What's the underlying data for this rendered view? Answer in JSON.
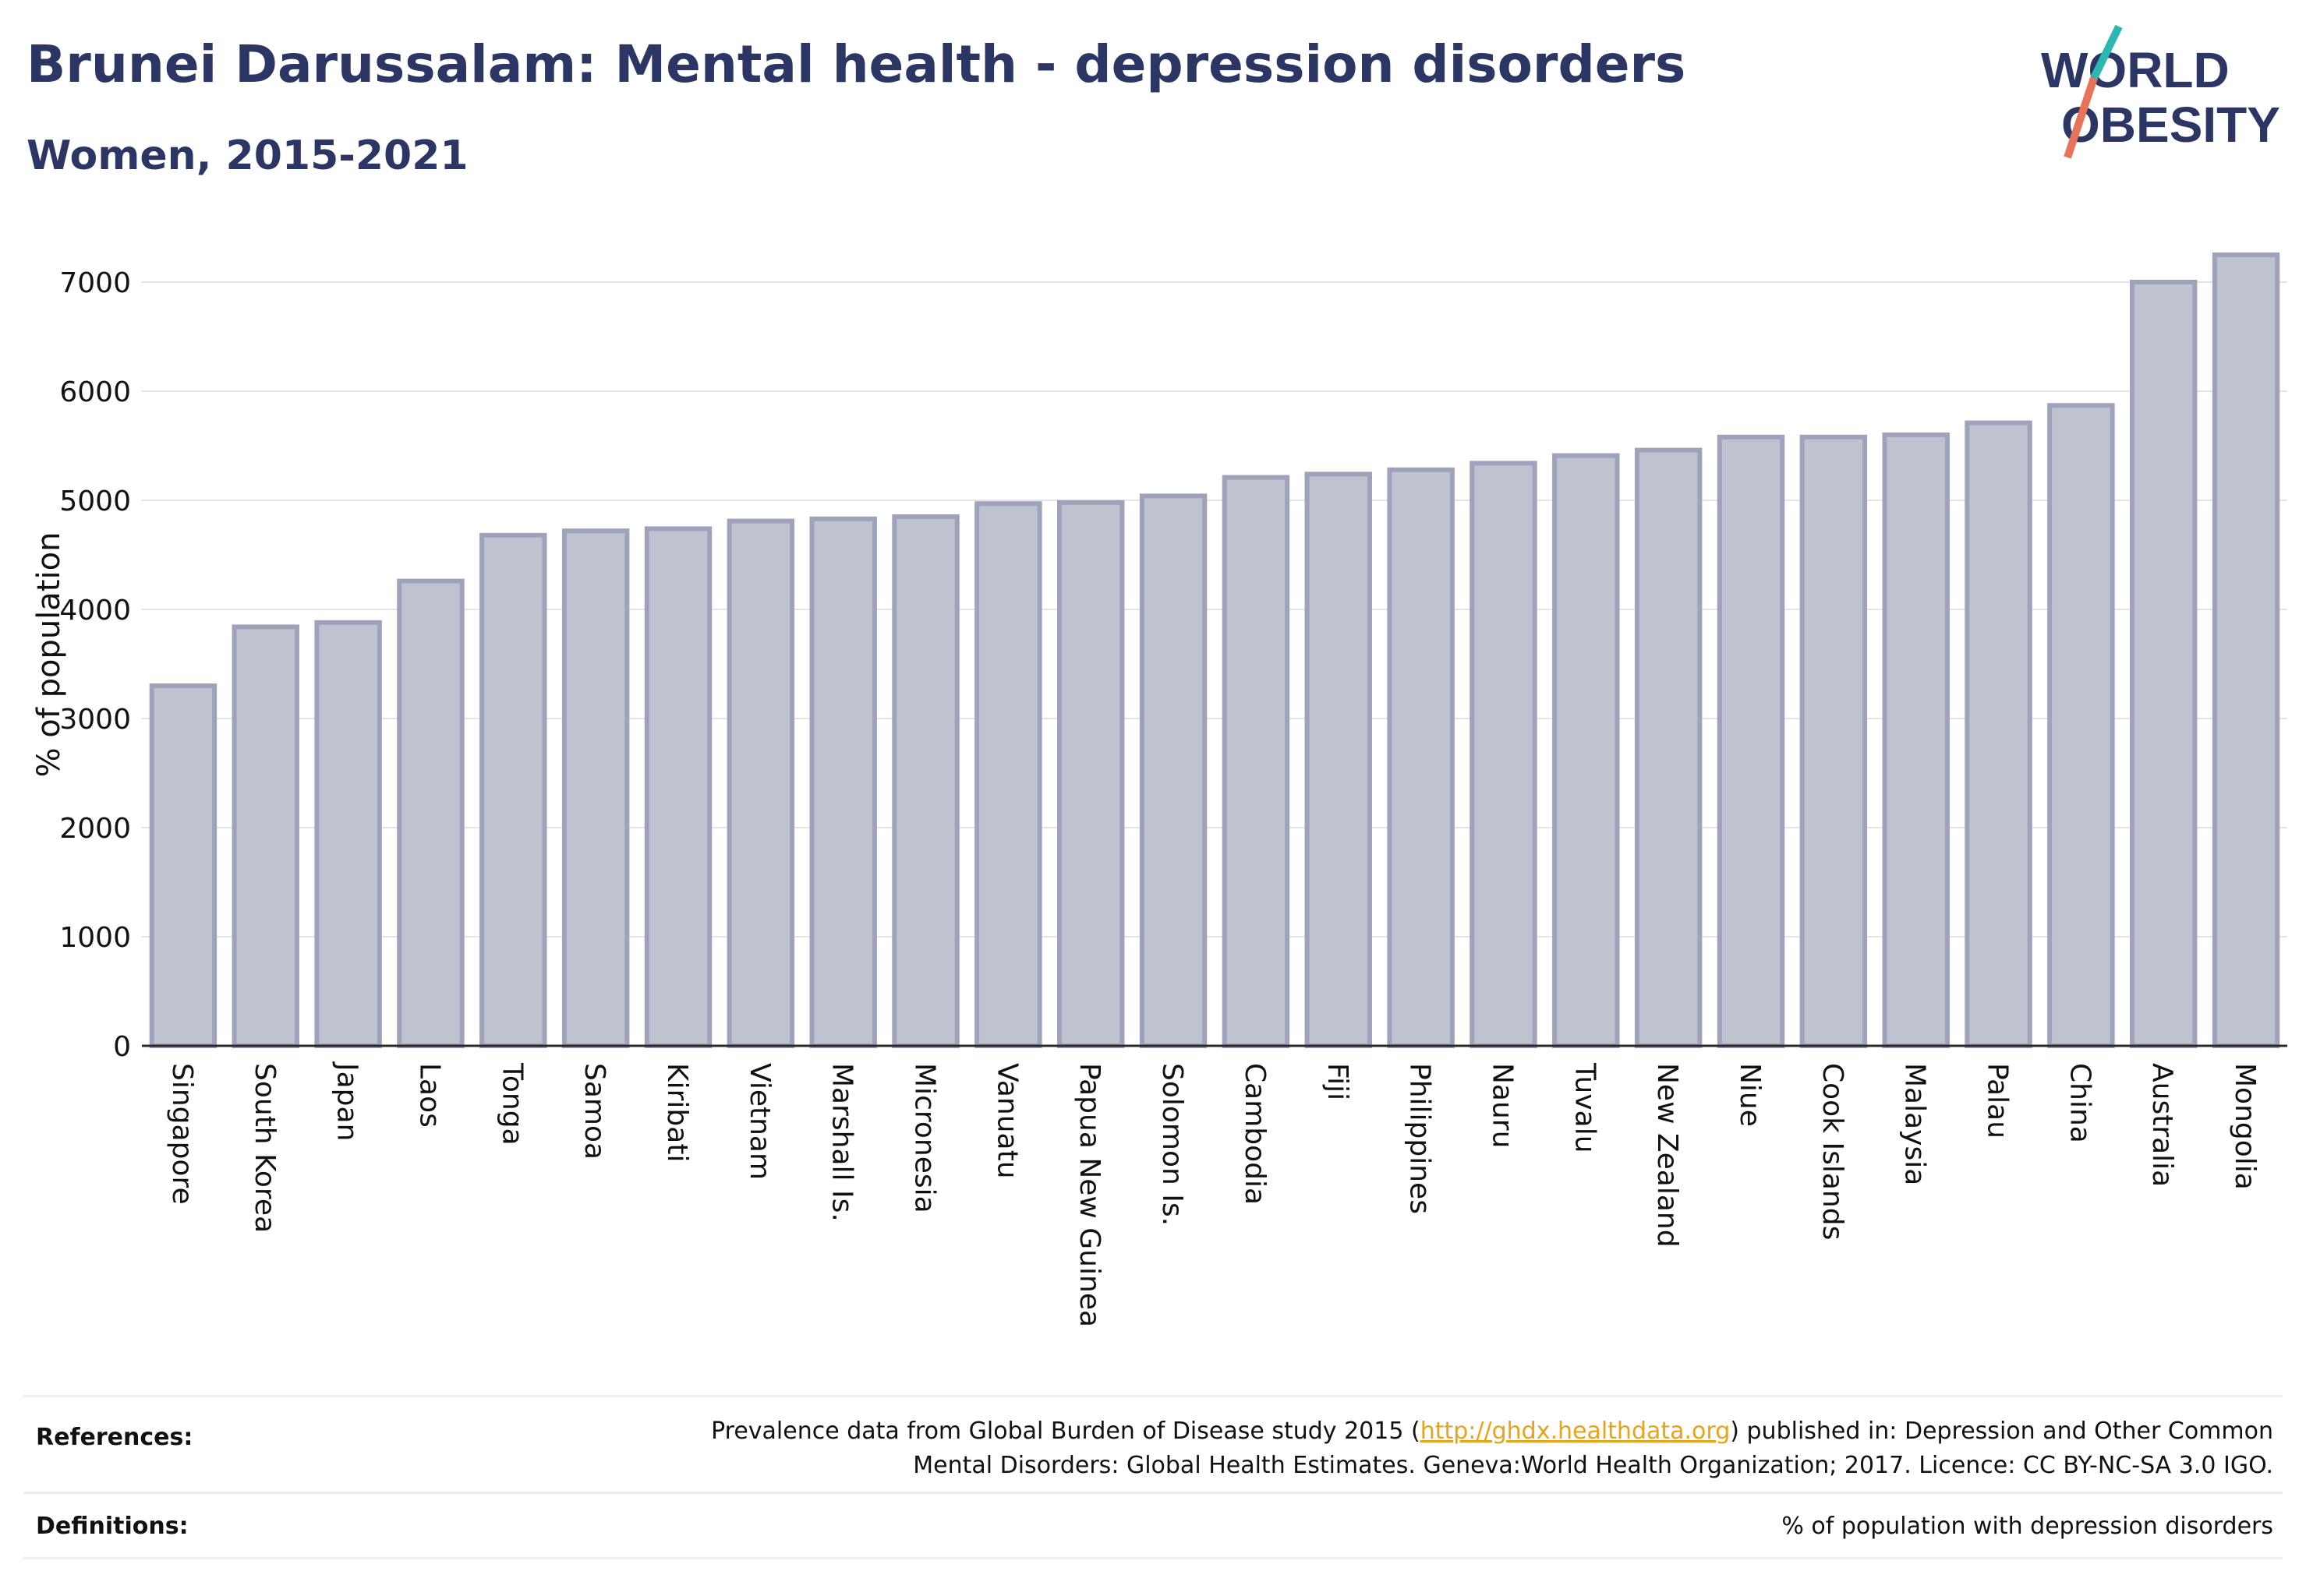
{
  "title": "Brunei Darussalam: Mental health - depression disorders",
  "subtitle": "Women, 2015-2021",
  "logo": {
    "line1": "WORLD",
    "line2": "OBESITY"
  },
  "chart_data": {
    "type": "bar",
    "ylabel": "% of population",
    "ylim": [
      0,
      7300
    ],
    "yticks": [
      0,
      1000,
      2000,
      3000,
      4000,
      5000,
      6000,
      7000
    ],
    "grid": true,
    "categories": [
      "Singapore",
      "South Korea",
      "Japan",
      "Laos",
      "Tonga",
      "Samoa",
      "Kiribati",
      "Vietnam",
      "Marshall Is.",
      "Micronesia",
      "Vanuatu",
      "Papua New Guinea",
      "Solomon Is.",
      "Cambodia",
      "Fiji",
      "Philippines",
      "Nauru",
      "Tuvalu",
      "New Zealand",
      "Niue",
      "Cook Islands",
      "Malaysia",
      "Palau",
      "China",
      "Australia",
      "Mongolia"
    ],
    "values": [
      3300,
      3840,
      3880,
      4260,
      4680,
      4720,
      4740,
      4810,
      4830,
      4850,
      4970,
      4980,
      5040,
      5210,
      5240,
      5280,
      5340,
      5410,
      5460,
      5580,
      5580,
      5600,
      5710,
      5870,
      7000,
      7250
    ],
    "colors": {
      "bar_fill": "#bfc2cf",
      "bar_stroke": "#9ea3bb"
    }
  },
  "footer": {
    "references_label": "References:",
    "references_text_before": "Prevalence data from Global Burden of Disease study 2015 (",
    "references_link": "http://ghdx.healthdata.org",
    "references_text_after": ") published in: Depression and Other Common",
    "references_line2": "Mental Disorders: Global Health Estimates. Geneva:World Health Organization; 2017. Licence: CC BY-NC-SA 3.0 IGO.",
    "definitions_label": "Definitions:",
    "definitions_text": "% of population with depression disorders"
  }
}
